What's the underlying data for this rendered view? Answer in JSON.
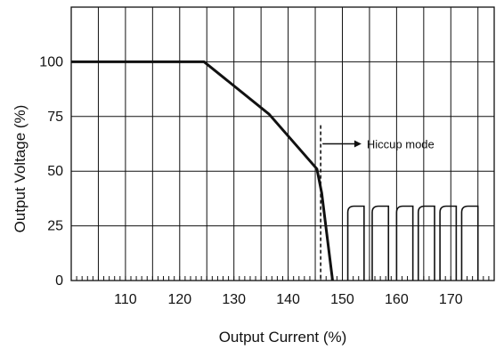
{
  "chart_data": {
    "type": "line",
    "title": "",
    "xlabel": "Output Current (%)",
    "ylabel": "Output Voltage (%)",
    "xlim": [
      100,
      178
    ],
    "ylim": [
      0,
      125
    ],
    "x_ticks": [
      110,
      120,
      130,
      140,
      150,
      160,
      170
    ],
    "y_ticks": [
      0,
      25,
      50,
      75,
      100
    ],
    "grid": true,
    "series": [
      {
        "values": [
          [
            100,
            100
          ],
          [
            124.5,
            100
          ],
          [
            136.5,
            76
          ],
          [
            145.3,
            51
          ],
          [
            146.2,
            40
          ],
          [
            147.2,
            20
          ],
          [
            148.2,
            0
          ]
        ]
      }
    ],
    "hiccup": {
      "level": 34,
      "pulses": [
        [
          151.0,
          154.0
        ],
        [
          155.5,
          158.5
        ],
        [
          160.0,
          163.0
        ],
        [
          164.0,
          167.0
        ],
        [
          168.0,
          171.0
        ],
        [
          172.0,
          175.0
        ]
      ]
    },
    "hiccup_boundary_x": 146.0,
    "annotation": {
      "text": "Hiccup mode",
      "x": 154.5,
      "y": 62.5
    },
    "colors": {
      "line": "#111111",
      "grid": "#111111",
      "background": "#ffffff"
    }
  }
}
